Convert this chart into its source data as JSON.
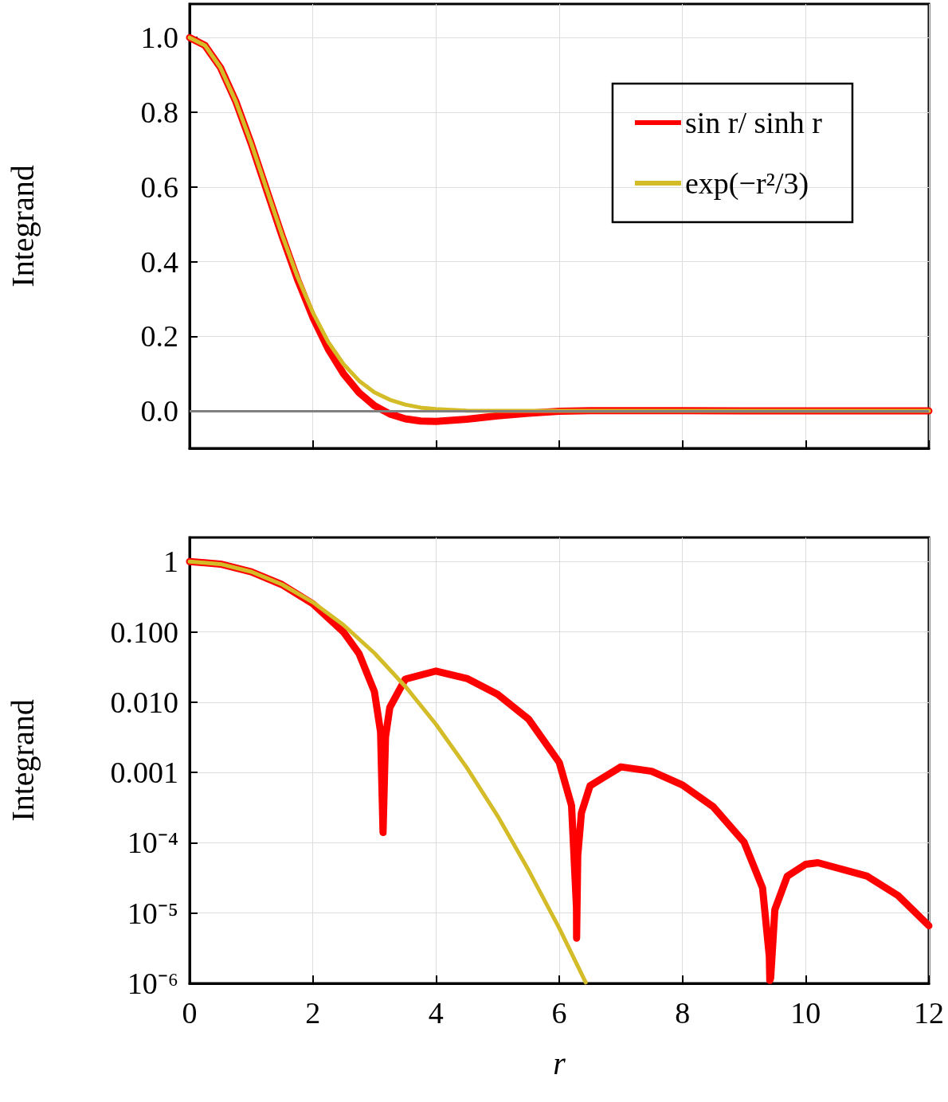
{
  "chart_data": [
    {
      "type": "line",
      "ylabel": "Integrand",
      "xlim": [
        0,
        12
      ],
      "xticks": [
        0,
        2,
        4,
        6,
        8,
        10,
        12
      ],
      "ylim": [
        -0.1,
        1.09
      ],
      "yticks": [
        {
          "value": 0,
          "label": "0.0"
        },
        {
          "value": 0.2,
          "label": "0.2"
        },
        {
          "value": 0.4,
          "label": "0.4"
        },
        {
          "value": 0.6,
          "label": "0.6"
        },
        {
          "value": 0.8,
          "label": "0.8"
        },
        {
          "value": 1,
          "label": "1.0"
        }
      ],
      "tick_labels": "y",
      "grid": true,
      "legend": "top right",
      "line_style": "solid",
      "ref_lines": [
        {
          "axis": "y",
          "value": 0,
          "color": "#808080"
        }
      ],
      "x": [
        0,
        0.25,
        0.5,
        0.75,
        1,
        1.25,
        1.5,
        1.75,
        2,
        2.25,
        2.5,
        2.75,
        3,
        3.25,
        3.5,
        3.75,
        4,
        4.5,
        5,
        5.5,
        6,
        6.5,
        7,
        8,
        9,
        10,
        11,
        12
      ],
      "series": [
        {
          "name": "sin r/ sinh r",
          "color": "#ff0000",
          "values": [
            1,
            0.979,
            0.92,
            0.829,
            0.716,
            0.592,
            0.469,
            0.353,
            0.251,
            0.166,
            0.099,
            0.049,
            0.014,
            -0.008,
            -0.021,
            -0.027,
            -0.028,
            -0.022,
            -0.013,
            -0.006,
            -0.001,
            0.001,
            0.001,
            0.001,
            0,
            0,
            0,
            0
          ]
        },
        {
          "name": "exp(−r²/3)",
          "color": "#d4bc28",
          "values": [
            1,
            0.979,
            0.92,
            0.829,
            0.717,
            0.594,
            0.472,
            0.36,
            0.264,
            0.185,
            0.125,
            0.081,
            0.05,
            0.03,
            0.017,
            0.009,
            0.005,
            0.001,
            0,
            0,
            0,
            0,
            0,
            0,
            0,
            0,
            0,
            0
          ]
        }
      ]
    },
    {
      "type": "line",
      "xlabel": "r",
      "ylabel": "Integrand",
      "xlim": [
        0,
        12
      ],
      "xticks": [
        0,
        2,
        4,
        6,
        8,
        10,
        12
      ],
      "log": "y",
      "ylim": [
        1e-06,
        2.2
      ],
      "yticks": [
        1,
        {
          "value": 0.1,
          "label": "0.100"
        },
        {
          "value": 0.01,
          "label": "0.010"
        },
        0.001,
        {
          "value": 0.0001,
          "label": "10⁻⁴"
        },
        {
          "value": 1e-05,
          "label": "10⁻⁵"
        },
        {
          "value": 1e-06,
          "label": "10⁻⁶"
        }
      ],
      "grid": true,
      "line_style": "solid",
      "series": [
        {
          "color": "#ff0000",
          "x": [
            0,
            0.5,
            1,
            1.5,
            2,
            2.5,
            2.75,
            3,
            3.1,
            3.14,
            3.18,
            3.25,
            3.5,
            4,
            4.5,
            5,
            5.5,
            6,
            6.2,
            6.28,
            6.282,
            6.3,
            6.36,
            6.5,
            7,
            7.5,
            8,
            8.5,
            9,
            9.3,
            9.41,
            9.418,
            9.432,
            9.5,
            9.7,
            10,
            10.2,
            11,
            11.5,
            12
          ],
          "values": [
            1,
            0.92,
            0.716,
            0.469,
            0.251,
            0.099,
            0.049,
            0.0141,
            0.00375,
            0.00014,
            0.0032,
            0.0084,
            0.0212,
            0.0277,
            0.0217,
            0.0129,
            0.00577,
            0.00139,
            0.000337,
            1.2e-05,
            4.4e-06,
            6.5e-05,
            0.000266,
            0.000647,
            0.0012,
            0.00104,
            0.000664,
            0.000325,
            0.000102,
            2.28e-05,
            2.4e-06,
            1.1e-06,
            1.2e-06,
            1.12e-05,
            3.33e-05,
            4.94e-05,
            5.2e-05,
            3.34e-05,
            1.77e-05,
            6.6e-06
          ]
        },
        {
          "color": "#d4bc28",
          "x": [
            0,
            0.5,
            1,
            1.5,
            2,
            2.5,
            3,
            3.5,
            4,
            4.5,
            5,
            5.5,
            6,
            6.43
          ],
          "values": [
            1,
            0.92,
            0.717,
            0.472,
            0.264,
            0.125,
            0.0498,
            0.0168,
            0.00483,
            0.00117,
            0.00024,
            4.1e-05,
            6.1e-06,
            1.03e-06
          ]
        }
      ]
    }
  ]
}
